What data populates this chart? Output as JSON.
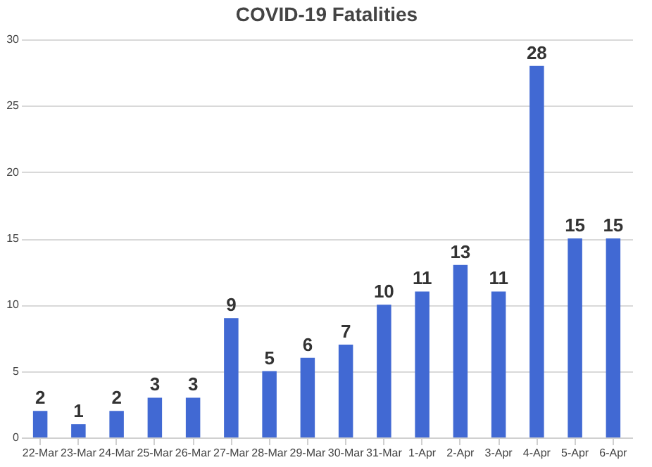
{
  "chart_data": {
    "type": "bar",
    "title": "COVID-19 Fatalities",
    "categories": [
      "22-Mar",
      "23-Mar",
      "24-Mar",
      "25-Mar",
      "26-Mar",
      "27-Mar",
      "28-Mar",
      "29-Mar",
      "30-Mar",
      "31-Mar",
      "1-Apr",
      "2-Apr",
      "3-Apr",
      "4-Apr",
      "5-Apr",
      "6-Apr"
    ],
    "values": [
      2,
      1,
      2,
      3,
      3,
      9,
      5,
      6,
      7,
      10,
      11,
      13,
      11,
      28,
      15,
      15
    ],
    "color": "#4169d3",
    "ylim": [
      0,
      30
    ],
    "yticks": [
      0,
      5,
      10,
      15,
      20,
      25,
      30
    ],
    "grid": "y",
    "data_labels": true
  }
}
